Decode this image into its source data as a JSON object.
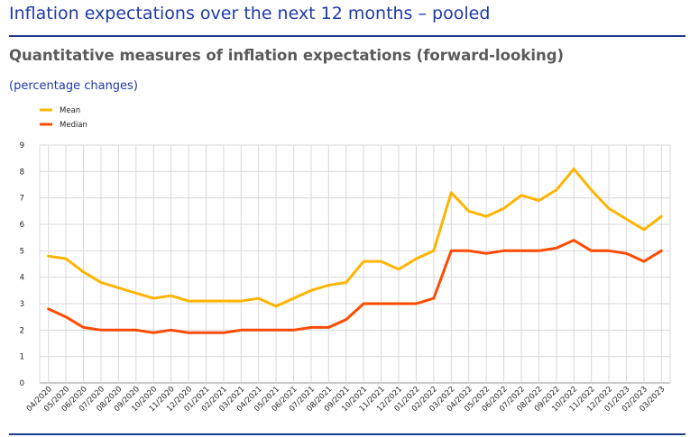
{
  "header": {
    "title": "Inflation expectations over the next 12 months – pooled",
    "subtitle": "Quantitative measures of inflation expectations (forward-looking)",
    "units": "(percentage changes)"
  },
  "colors": {
    "mean": "#FFB400",
    "median": "#FF4B00",
    "rule": "#1f3a8a",
    "grid": "#d9d9d9"
  },
  "chart_data": {
    "type": "line",
    "title": "Quantitative measures of inflation expectations (forward-looking)",
    "ylabel": "(percentage changes)",
    "xlabel": "",
    "ylim": [
      0,
      9
    ],
    "yticks": [
      0,
      1,
      2,
      3,
      4,
      5,
      6,
      7,
      8,
      9
    ],
    "grid": true,
    "legend_position": "top-left",
    "categories": [
      "04/2020",
      "05/2020",
      "06/2020",
      "07/2020",
      "08/2020",
      "09/2020",
      "10/2020",
      "11/2020",
      "12/2020",
      "01/2021",
      "02/2021",
      "03/2021",
      "04/2021",
      "05/2021",
      "06/2021",
      "07/2021",
      "08/2021",
      "09/2021",
      "10/2021",
      "11/2021",
      "12/2021",
      "01/2022",
      "02/2022",
      "03/2022",
      "04/2022",
      "05/2022",
      "06/2022",
      "07/2022",
      "08/2022",
      "09/2022",
      "10/2022",
      "11/2022",
      "12/2022",
      "01/2023",
      "02/2023",
      "03/2023"
    ],
    "series": [
      {
        "name": "Mean",
        "color": "#FFB400",
        "values": [
          4.8,
          4.7,
          4.2,
          3.8,
          3.6,
          3.4,
          3.2,
          3.3,
          3.1,
          3.1,
          3.1,
          3.1,
          3.2,
          2.9,
          3.2,
          3.5,
          3.7,
          3.8,
          4.6,
          4.6,
          4.3,
          4.7,
          5.0,
          7.2,
          6.5,
          6.3,
          6.6,
          7.1,
          6.9,
          7.3,
          8.1,
          7.3,
          6.6,
          6.2,
          5.8,
          6.3
        ]
      },
      {
        "name": "Median",
        "color": "#FF4B00",
        "values": [
          2.8,
          2.5,
          2.1,
          2.0,
          2.0,
          2.0,
          1.9,
          2.0,
          1.9,
          1.9,
          1.9,
          2.0,
          2.0,
          2.0,
          2.0,
          2.1,
          2.1,
          2.4,
          3.0,
          3.0,
          3.0,
          3.0,
          3.2,
          5.0,
          5.0,
          4.9,
          5.0,
          5.0,
          5.0,
          5.1,
          5.4,
          5.0,
          5.0,
          4.9,
          4.6,
          5.0
        ]
      }
    ]
  }
}
